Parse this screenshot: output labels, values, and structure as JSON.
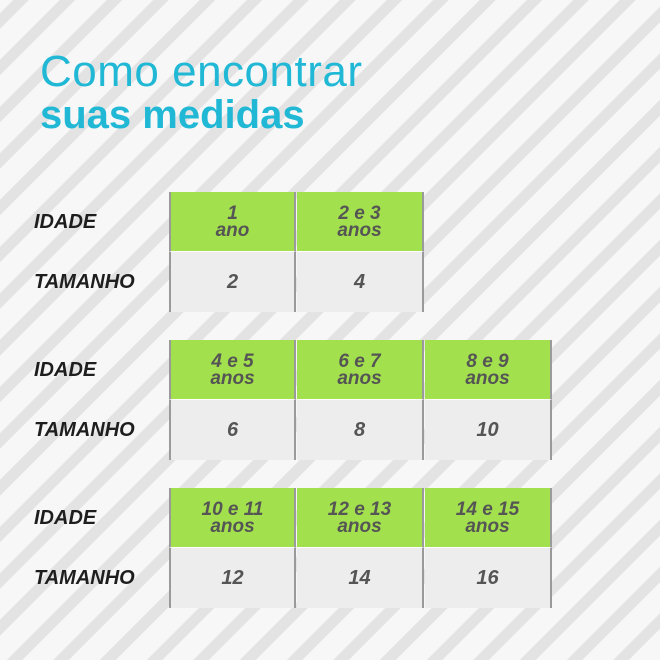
{
  "title": {
    "line1": "Como encontrar",
    "line2": "suas medidas"
  },
  "labels": {
    "age": "IDADE",
    "size": "TAMANHO"
  },
  "tables": [
    {
      "columns": [
        {
          "age_line1": "1",
          "age_line2": "ano",
          "size": "2"
        },
        {
          "age_line1": "2 e 3",
          "age_line2": "anos",
          "size": "4"
        }
      ]
    },
    {
      "columns": [
        {
          "age_line1": "4 e 5",
          "age_line2": "anos",
          "size": "6"
        },
        {
          "age_line1": "6 e 7",
          "age_line2": "anos",
          "size": "8"
        },
        {
          "age_line1": "8 e 9",
          "age_line2": "anos",
          "size": "10"
        }
      ]
    },
    {
      "columns": [
        {
          "age_line1": "10 e 11",
          "age_line2": "anos",
          "size": "12"
        },
        {
          "age_line1": "12 e 13",
          "age_line2": "anos",
          "size": "14"
        },
        {
          "age_line1": "14 e 15",
          "age_line2": "anos",
          "size": "16"
        }
      ]
    }
  ],
  "colors": {
    "title": "#21b8d6",
    "age_cell": "#a3e04d",
    "size_cell": "#ededed"
  }
}
